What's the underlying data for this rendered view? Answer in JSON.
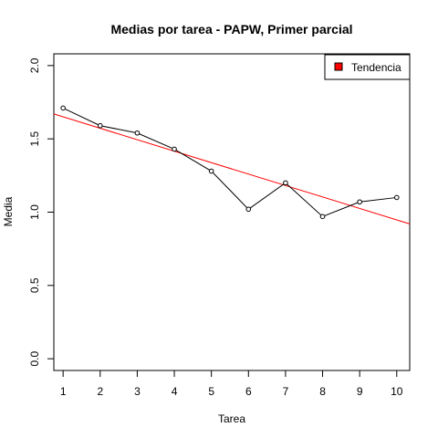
{
  "chart_data": {
    "type": "line",
    "title": "Medias por tarea - PAPW, Primer parcial",
    "xlabel": "Tarea",
    "ylabel": "Media",
    "xlim": [
      0.75,
      10.35
    ],
    "ylim": [
      -0.08,
      2.08
    ],
    "x_ticks": [
      1,
      2,
      3,
      4,
      5,
      6,
      7,
      8,
      9,
      10
    ],
    "y_ticks": [
      0.0,
      0.5,
      1.0,
      1.5,
      2.0
    ],
    "y_tick_labels": [
      "0.0",
      "0.5",
      "1.0",
      "1.5",
      "2.0"
    ],
    "series": [
      {
        "color": "#000000",
        "marker": "open-circle",
        "x": [
          1,
          2,
          3,
          4,
          5,
          6,
          7,
          8,
          9,
          10
        ],
        "values": [
          1.71,
          1.59,
          1.54,
          1.43,
          1.28,
          1.02,
          1.2,
          0.97,
          1.07,
          1.1
        ]
      }
    ],
    "trend_line": {
      "name": "Tendencia",
      "color": "#ff0000",
      "x": [
        0.75,
        10.35
      ],
      "y": [
        1.67,
        0.92
      ]
    },
    "legend": {
      "position": "top-right",
      "entries": [
        {
          "label": "Tendencia",
          "color": "#ff0000"
        }
      ]
    },
    "grid": false
  }
}
